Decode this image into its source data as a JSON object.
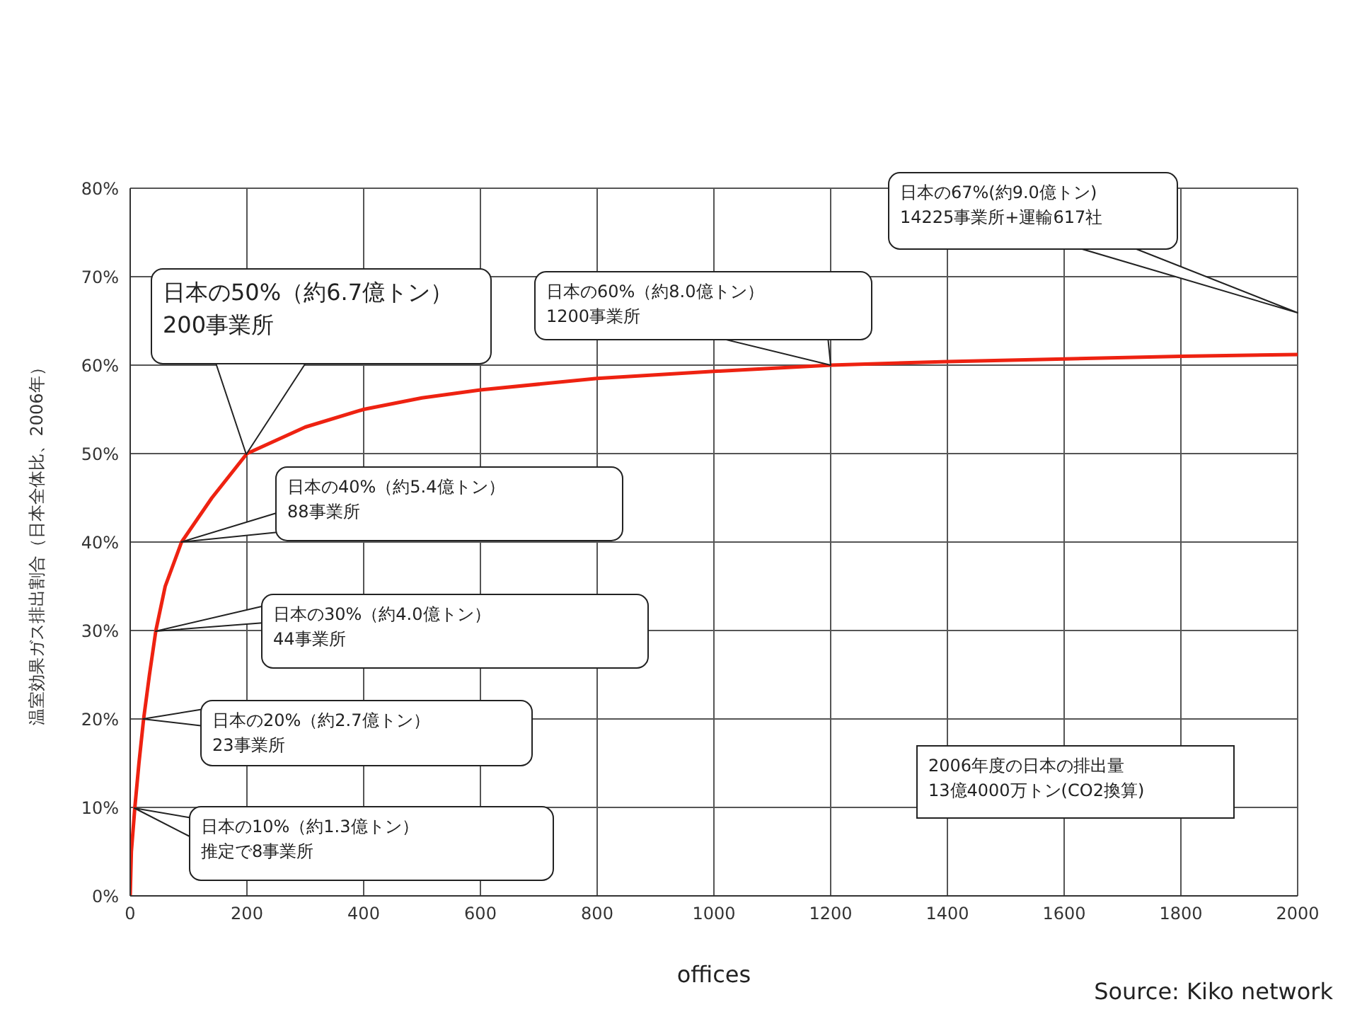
{
  "chart_data": {
    "type": "line",
    "xlabel": "offices",
    "ylabel": "温室効果ガス排出割合（日本全体比、2006年）",
    "x": [
      0,
      2,
      8,
      15,
      23,
      33,
      44,
      60,
      88,
      140,
      200,
      300,
      400,
      500,
      600,
      800,
      1000,
      1200,
      1400,
      1600,
      1800,
      2000
    ],
    "series": [
      {
        "color": "#ee2211",
        "values": [
          0,
          5,
          10,
          15,
          20,
          25,
          30,
          35,
          40,
          45,
          50,
          53,
          55,
          56.3,
          57.2,
          58.5,
          59.3,
          60,
          60.4,
          60.7,
          61,
          61.2
        ]
      }
    ],
    "xlim": [
      0,
      2000
    ],
    "xticks": [
      0,
      200,
      400,
      600,
      800,
      1000,
      1200,
      1400,
      1600,
      1800,
      2000
    ],
    "ylim": [
      0,
      80
    ],
    "yticks": [
      {
        "value": 0,
        "label": "0%"
      },
      {
        "value": 10,
        "label": "10%"
      },
      {
        "value": 20,
        "label": "20%"
      },
      {
        "value": 30,
        "label": "30%"
      },
      {
        "value": 40,
        "label": "40%"
      },
      {
        "value": 50,
        "label": "50%"
      },
      {
        "value": 60,
        "label": "60%"
      },
      {
        "value": 70,
        "label": "70%"
      },
      {
        "value": 80,
        "label": "80%"
      }
    ],
    "grid": true,
    "marker": "none",
    "line_style": "solid",
    "annotations": [
      "日本の10%（約1.3億トン）",
      "推定で8事業所",
      "日本の20%（約2.7億トン）",
      "23事業所",
      "日本の30%（約4.0億トン）",
      "44事業所",
      "日本の40%（約5.4億トン）",
      "88事業所",
      "日本の50%（約6.7億トン）",
      "200事業所",
      "日本の60%（約8.0億トン）",
      "1200事業所",
      "日本の67%(約9.0億トン)",
      "14225事業所+運輸617社",
      "2006年度の日本の排出量",
      "13億4000万トン(CO2換算)",
      "Source: Kiko network"
    ]
  }
}
